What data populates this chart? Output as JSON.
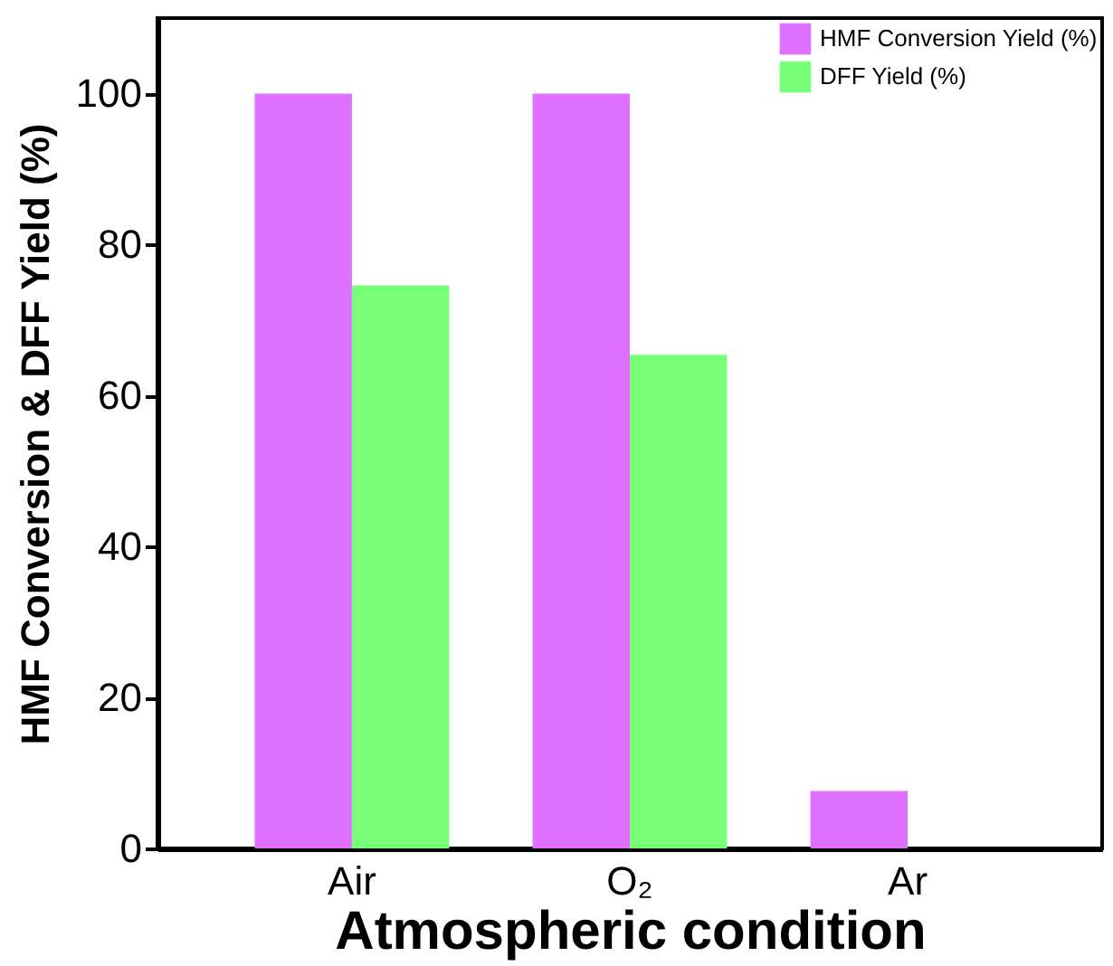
{
  "chart_data": {
    "type": "bar",
    "xlabel": "Atmospheric condition",
    "ylabel": "HMF Conversion & DFF Yield (%)",
    "categories": [
      "Air",
      "O₂",
      "Ar"
    ],
    "series": [
      {
        "name": "HMF Conversion Yield (%)",
        "color": "#e070ff",
        "values": [
          100,
          100,
          7.6
        ]
      },
      {
        "name": "DFF Yield (%)",
        "color": "#77ff77",
        "values": [
          74.6,
          65.4,
          null
        ]
      }
    ],
    "ylim": [
      0,
      110
    ],
    "yticks": [
      0,
      20,
      40,
      60,
      80,
      100
    ],
    "grid": false,
    "legend": "top right"
  }
}
